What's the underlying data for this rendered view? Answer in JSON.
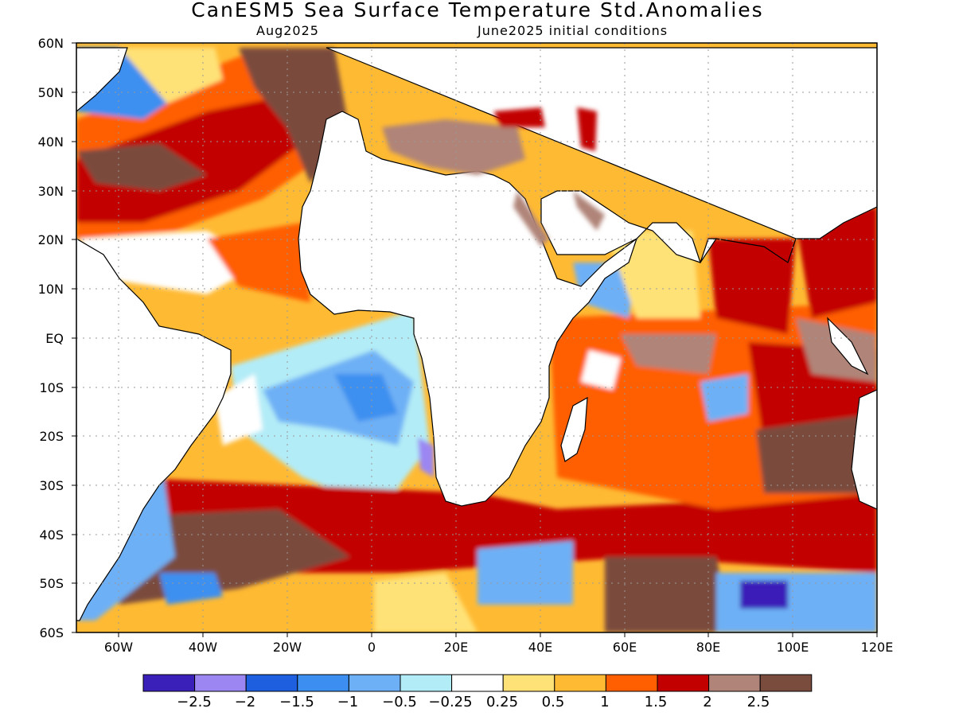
{
  "title": "CanESM5 Sea Surface Temperature Std.Anomalies",
  "subtitle_left": "Aug2025",
  "subtitle_right": "June2025 initial conditions",
  "map": {
    "lon_range": [
      -70,
      120
    ],
    "lat_range": [
      -60,
      60
    ],
    "lat_labels": [
      "60N",
      "50N",
      "40N",
      "30N",
      "20N",
      "10N",
      "EQ",
      "10S",
      "20S",
      "30S",
      "40S",
      "50S",
      "60S"
    ],
    "lon_labels": [
      "60W",
      "40W",
      "20W",
      "0",
      "20E",
      "40E",
      "60E",
      "80E",
      "100E",
      "120E"
    ],
    "land_color": "#ffffff",
    "gridlines": "dotted"
  },
  "colorbar": {
    "colors": [
      "#3a1fb8",
      "#9b86f2",
      "#1e5fe0",
      "#3c8ff0",
      "#6eb0f5",
      "#b2ecf7",
      "#ffffff",
      "#ffe277",
      "#ffba33",
      "#ff5f00",
      "#c20000",
      "#b08478",
      "#7a4c3e"
    ],
    "labels": [
      "−2.5",
      "−2",
      "−1.5",
      "−1",
      "−0.5",
      "−0.25",
      "0.25",
      "0.5",
      "1",
      "1.5",
      "2",
      "2.5"
    ]
  }
}
